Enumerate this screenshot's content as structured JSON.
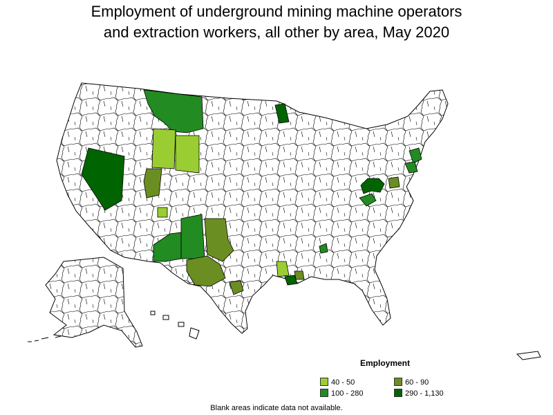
{
  "title": {
    "line1": "Employment of underground mining machine operators",
    "line2": "and extraction workers, all other by area, May 2020"
  },
  "legend": {
    "title": "Employment",
    "items": [
      {
        "label": "40 - 50",
        "color": "#9acd32"
      },
      {
        "label": "60 - 90",
        "color": "#6b8e23"
      },
      {
        "label": "100 - 280",
        "color": "#228b22"
      },
      {
        "label": "290 - 1,130",
        "color": "#006400"
      }
    ]
  },
  "colors": {
    "no_data": "#ffffff",
    "border": "#000000"
  },
  "footnote": "Blank areas indicate data not available.",
  "chart_data": {
    "type": "choropleth",
    "bins": [
      "40 - 50",
      "60 - 90",
      "100 - 280",
      "290 - 1,130"
    ],
    "shaded_areas": [
      {
        "area": "Western Montana",
        "bin": "100 - 280"
      },
      {
        "area": "Northeastern Minnesota",
        "bin": "290 - 1,130"
      },
      {
        "area": "Western Wyoming",
        "bin": "40 - 50"
      },
      {
        "area": "Central Wyoming",
        "bin": "40 - 50"
      },
      {
        "area": "Nevada",
        "bin": "290 - 1,130"
      },
      {
        "area": "Eastern Utah",
        "bin": "60 - 90"
      },
      {
        "area": "Southwestern Colorado",
        "bin": "40 - 50"
      },
      {
        "area": "Northern New Mexico",
        "bin": "100 - 280"
      },
      {
        "area": "Southern New Mexico",
        "bin": "100 - 280"
      },
      {
        "area": "West Texas",
        "bin": "60 - 90"
      },
      {
        "area": "Texas Panhandle",
        "bin": "60 - 90"
      },
      {
        "area": "Central Texas",
        "bin": "60 - 90"
      },
      {
        "area": "Northeastern Pennsylvania",
        "bin": "100 - 280"
      },
      {
        "area": "Eastern Pennsylvania",
        "bin": "100 - 280"
      },
      {
        "area": "Southwestern Pennsylvania / West Virginia",
        "bin": "290 - 1,130"
      },
      {
        "area": "Western Virginia",
        "bin": "60 - 90"
      },
      {
        "area": "Eastern Kentucky",
        "bin": "100 - 280"
      },
      {
        "area": "Northern Alabama",
        "bin": "100 - 280"
      },
      {
        "area": "Southern Mississippi",
        "bin": "40 - 50"
      },
      {
        "area": "Southern Louisiana",
        "bin": "290 - 1,130"
      },
      {
        "area": "South-central Louisiana",
        "bin": "60 - 90"
      }
    ]
  }
}
